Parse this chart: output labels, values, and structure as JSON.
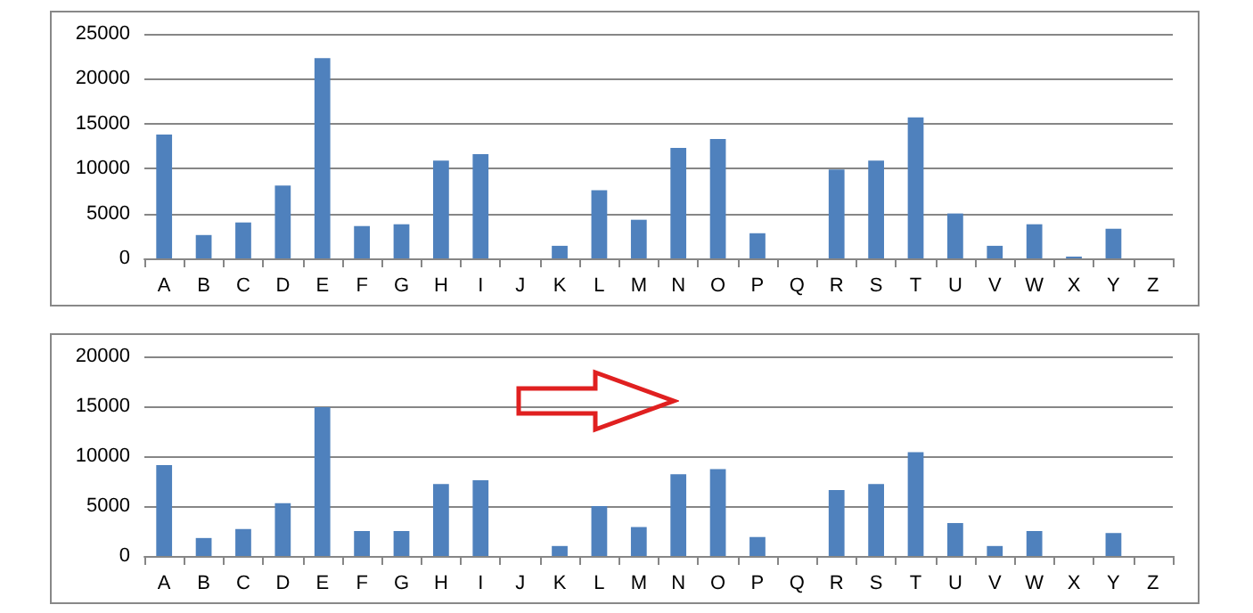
{
  "chart_data": [
    {
      "type": "bar",
      "categories": [
        "A",
        "B",
        "C",
        "D",
        "E",
        "F",
        "G",
        "H",
        "I",
        "J",
        "K",
        "L",
        "M",
        "N",
        "O",
        "P",
        "Q",
        "R",
        "S",
        "T",
        "U",
        "V",
        "W",
        "X",
        "Y",
        "Z"
      ],
      "values": [
        13800,
        2600,
        4000,
        8100,
        22300,
        3600,
        3800,
        10900,
        11600,
        0,
        1400,
        7600,
        4300,
        12300,
        13300,
        2800,
        0,
        9900,
        10900,
        15700,
        5000,
        1400,
        3800,
        200,
        3300,
        0
      ],
      "color": "#4f81bd",
      "ylim": [
        0,
        25000
      ],
      "yticks": [
        0,
        5000,
        10000,
        15000,
        20000,
        25000
      ],
      "grid": "y"
    },
    {
      "type": "bar",
      "categories": [
        "A",
        "B",
        "C",
        "D",
        "E",
        "F",
        "G",
        "H",
        "I",
        "J",
        "K",
        "L",
        "M",
        "N",
        "O",
        "P",
        "Q",
        "R",
        "S",
        "T",
        "U",
        "V",
        "W",
        "X",
        "Y",
        "Z"
      ],
      "values": [
        9100,
        1800,
        2700,
        5300,
        14900,
        2500,
        2500,
        7200,
        7600,
        0,
        1000,
        5000,
        2900,
        8200,
        8700,
        1900,
        0,
        6600,
        7200,
        10400,
        3300,
        1000,
        2500,
        0,
        2300,
        0
      ],
      "color": "#4f81bd",
      "ylim": [
        0,
        20000
      ],
      "yticks": [
        0,
        5000,
        10000,
        15000,
        20000
      ],
      "grid": "y"
    }
  ]
}
